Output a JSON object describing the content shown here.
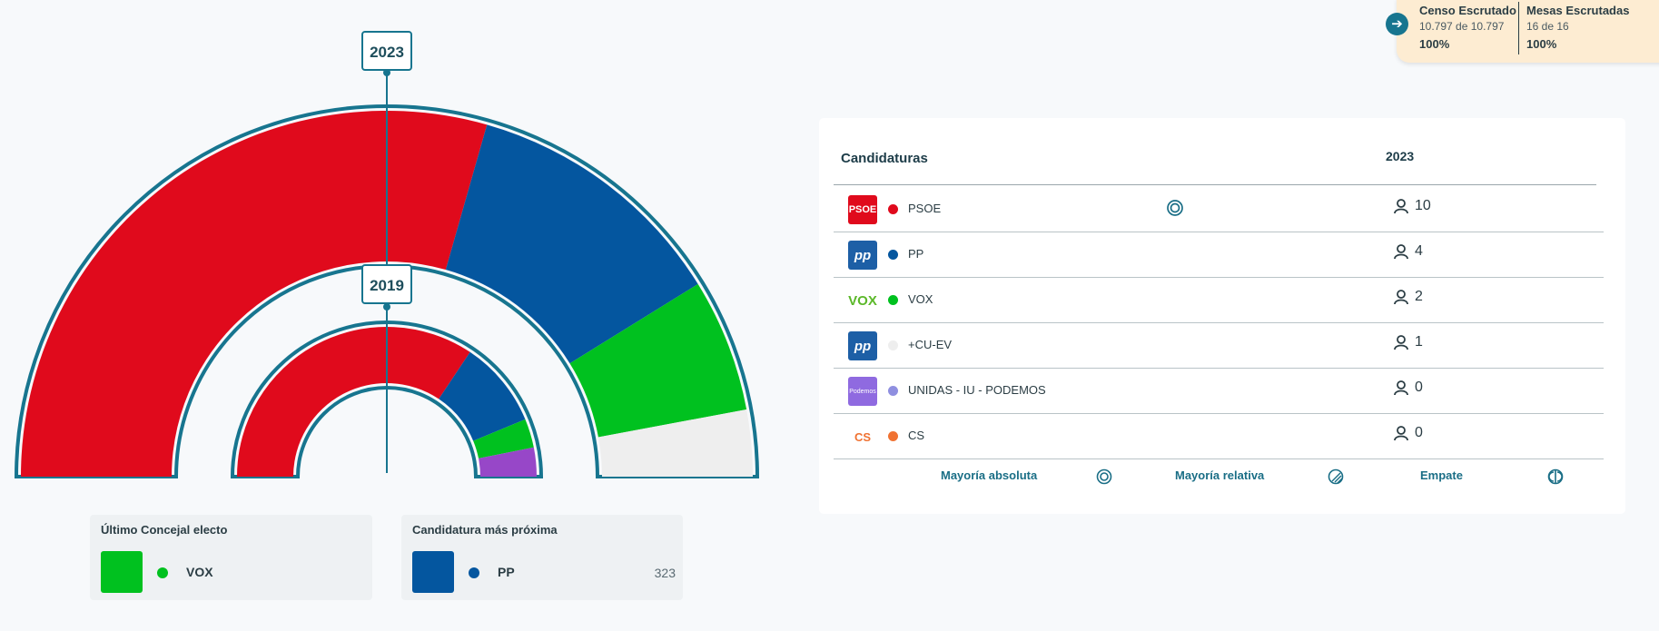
{
  "hemicycles": [
    {
      "year": "2023",
      "seats": [
        {
          "party": "PSOE",
          "value": 10,
          "color": "#e00a1c"
        },
        {
          "party": "PP",
          "value": 4,
          "color": "#04569f"
        },
        {
          "party": "VOX",
          "value": 2,
          "color": "#00c11f"
        },
        {
          "party": "+CU-EV",
          "value": 1,
          "color": "#eeeeee"
        }
      ]
    },
    {
      "year": "2019",
      "seats": [
        {
          "party": "PSOE",
          "value": 11,
          "color": "#e00a1c"
        },
        {
          "party": "PP",
          "value": 3,
          "color": "#04569f"
        },
        {
          "party": "VOX",
          "value": 1,
          "color": "#00c11f"
        },
        {
          "party": "UNIDAS - IU - PODEMOS",
          "value": 1,
          "color": "#9747c8"
        }
      ]
    }
  ],
  "last_councillor": {
    "title": "Último Concejal electo",
    "party": "VOX",
    "color": "#00c11f"
  },
  "closest": {
    "title": "Candidatura más próxima",
    "party": "PP",
    "color": "#04569f",
    "value": "323"
  },
  "status": {
    "census": {
      "label": "Censo Escrutado",
      "detail": "10.797 de 10.797",
      "pct": "100%"
    },
    "tables": {
      "label": "Mesas Escrutadas",
      "detail": "16 de 16",
      "pct": "100%"
    }
  },
  "table": {
    "header_candidates": "Candidaturas",
    "header_year": "2023",
    "rows": [
      {
        "name": "PSOE",
        "seats": "10",
        "color": "#e00a1c",
        "logo": "PSOE",
        "majority": true
      },
      {
        "name": "PP",
        "seats": "4",
        "color": "#04569f",
        "logo": "pp"
      },
      {
        "name": "VOX",
        "seats": "2",
        "color": "#00c11f",
        "logo": "VOX"
      },
      {
        "name": "+CU-EV",
        "seats": "1",
        "color": "#eeeeee",
        "logo": "pp"
      },
      {
        "name": "UNIDAS - IU - PODEMOS",
        "seats": "0",
        "color": "#8f8fe0",
        "logo": "Podemos"
      },
      {
        "name": "CS",
        "seats": "0",
        "color": "#f07232",
        "logo": "CS"
      }
    ],
    "legend": {
      "absolute": "Mayoría absoluta",
      "relative": "Mayoría relativa",
      "tie": "Empate"
    }
  },
  "icons": {
    "seat": "person-icon",
    "majority": "absolute-majority-icon",
    "relative": "relative-majority-icon",
    "tie": "tie-icon",
    "arrow": "arrow-right-icon"
  }
}
